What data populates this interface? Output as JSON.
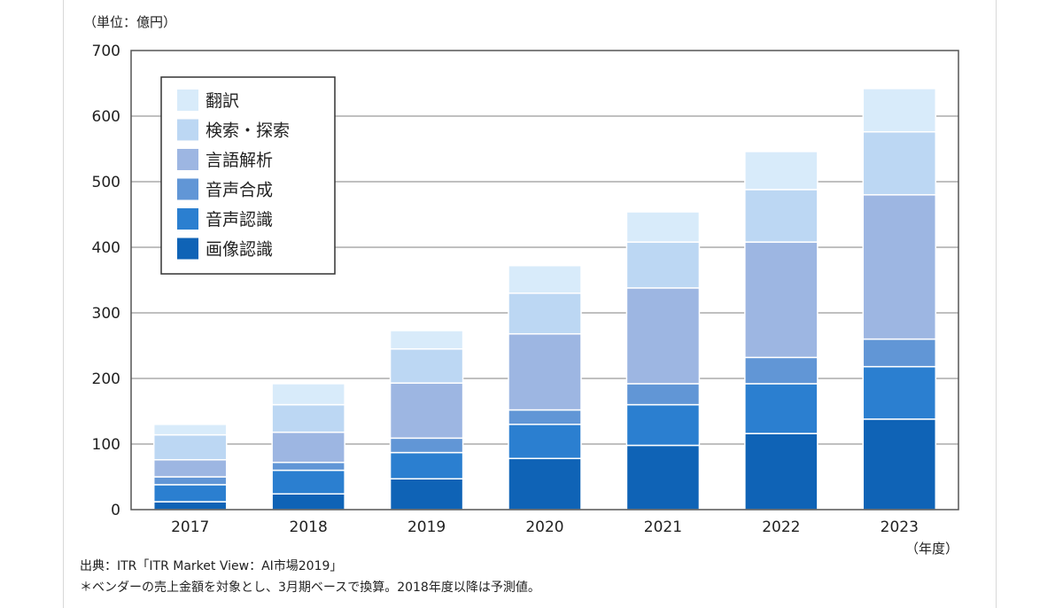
{
  "chart_data": {
    "type": "bar",
    "stacked": true,
    "unit_label": "（単位：億円）",
    "x_unit_label": "（年度）",
    "categories": [
      "2017",
      "2018",
      "2019",
      "2020",
      "2021",
      "2022",
      "2023"
    ],
    "series": [
      {
        "name": "画像認識",
        "color": "#0f63b6",
        "values": [
          12,
          24,
          47,
          78,
          98,
          116,
          138
        ]
      },
      {
        "name": "音声認識",
        "color": "#2b7fd0",
        "values": [
          26,
          36,
          40,
          52,
          62,
          76,
          80
        ]
      },
      {
        "name": "音声合成",
        "color": "#6196d6",
        "values": [
          12,
          12,
          22,
          22,
          32,
          40,
          42
        ]
      },
      {
        "name": "言語解析",
        "color": "#9db6e2",
        "values": [
          26,
          46,
          84,
          116,
          146,
          176,
          220
        ]
      },
      {
        "name": "検索・探索",
        "color": "#bcd7f3",
        "values": [
          38,
          42,
          52,
          62,
          70,
          80,
          96
        ]
      },
      {
        "name": "翻訳",
        "color": "#d8ebfa",
        "values": [
          16,
          32,
          28,
          42,
          46,
          58,
          66
        ]
      }
    ],
    "ylim": [
      0,
      700
    ],
    "yticks": [
      0,
      100,
      200,
      300,
      400,
      500,
      600,
      700
    ],
    "grid": true,
    "legend_position": "top-left"
  },
  "source_note": "出典：ITR「ITR Market View：AI市場2019」",
  "footnote": "＊ベンダーの売上金額を対象とし、3月期ベースで換算。2018年度以降は予測値。"
}
